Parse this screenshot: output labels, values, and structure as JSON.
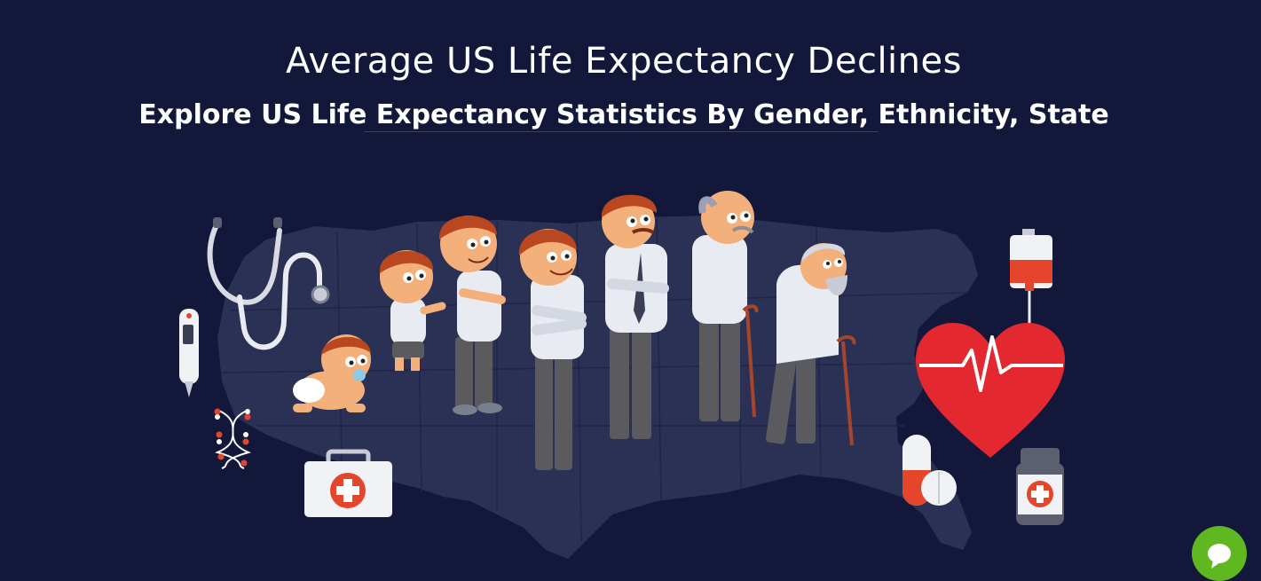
{
  "hero": {
    "title": "Average US Life Expectancy Declines",
    "subtitle": "Explore US Life Expectancy Statistics By Gender, Ethnicity, State"
  },
  "colors": {
    "background": "#13183a",
    "map": "#2a3155",
    "skin": "#f3b07a",
    "hair": "#b9471f",
    "shirt": "#e8ebf2",
    "pants": "#5b5b5f",
    "heart": "#e4282f",
    "medical_red": "#e5452b",
    "chat": "#5fb81f"
  },
  "icons": [
    "stethoscope-icon",
    "thermometer-icon",
    "dna-icon",
    "first-aid-kit-icon",
    "iv-bag-icon",
    "heart-pulse-icon",
    "pill-capsule-icon",
    "medicine-bottle-icon",
    "chat-icon"
  ]
}
